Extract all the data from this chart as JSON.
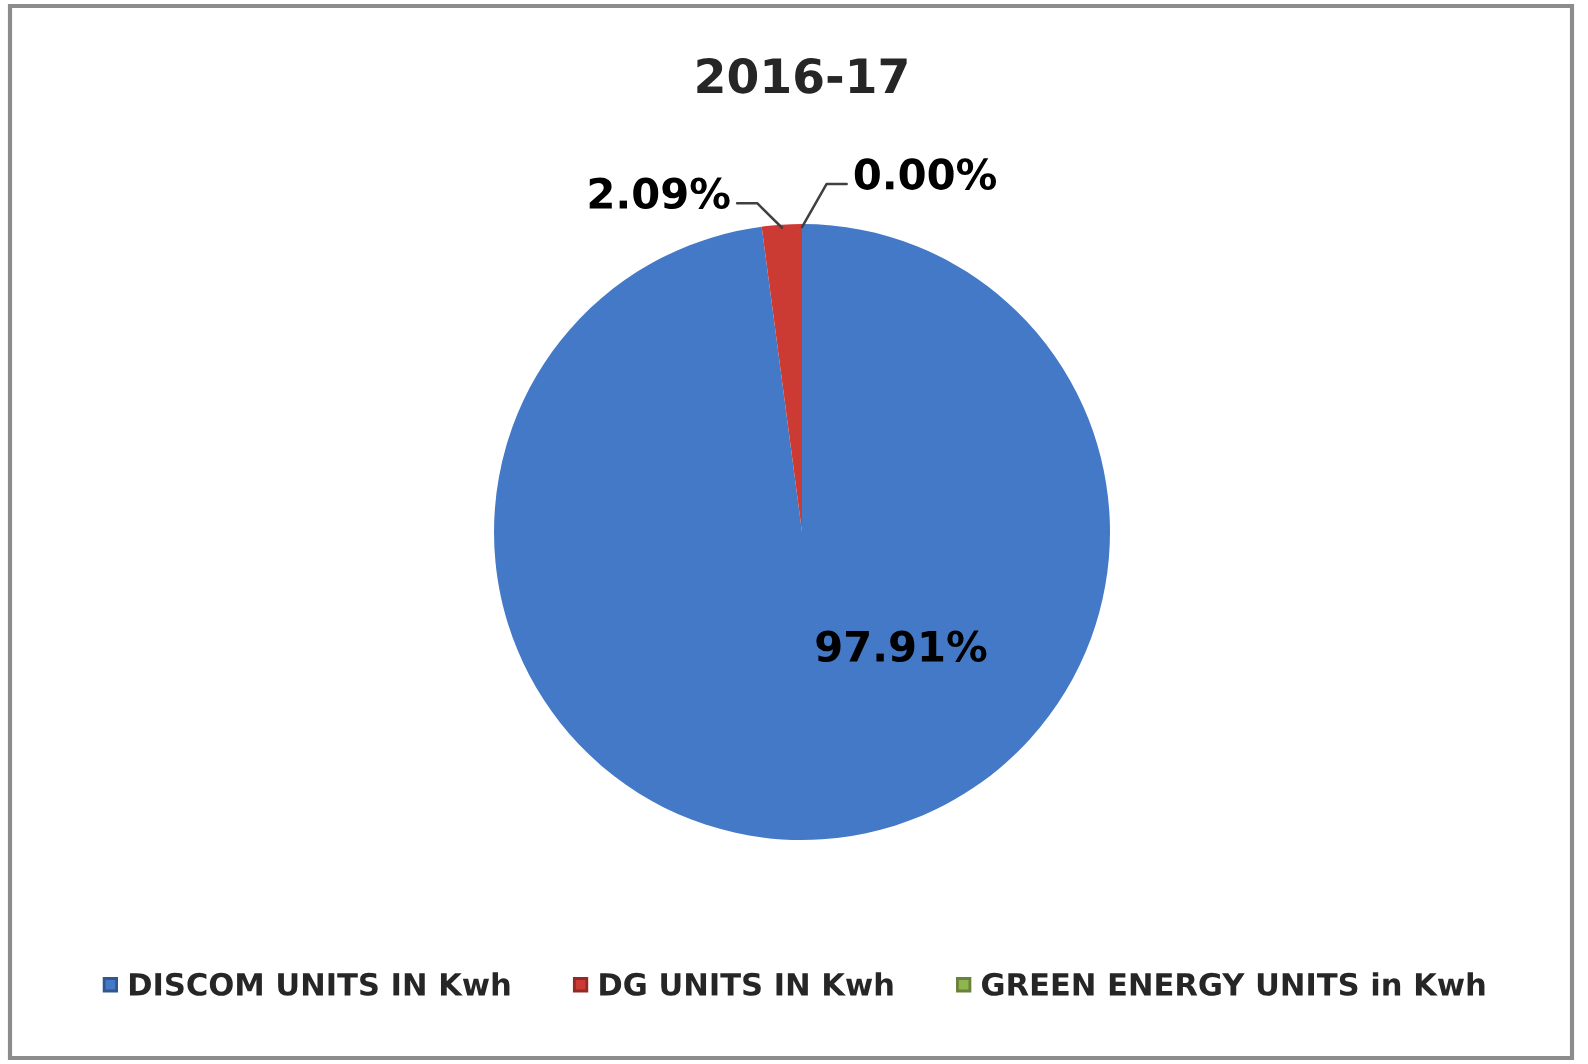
{
  "chart_data": {
    "type": "pie",
    "title": "2016-17",
    "categories": [
      "DISCOM UNITS IN Kwh",
      "DG UNITS IN Kwh",
      "GREEN ENERGY UNITS in Kwh"
    ],
    "values": [
      97.91,
      2.09,
      0.0
    ],
    "colors": [
      "#4379c6",
      "#cc3b33",
      "#8fb54f"
    ],
    "value_labels": [
      "97.91%",
      "2.09%",
      "0.00%"
    ],
    "legend": "bottom"
  }
}
